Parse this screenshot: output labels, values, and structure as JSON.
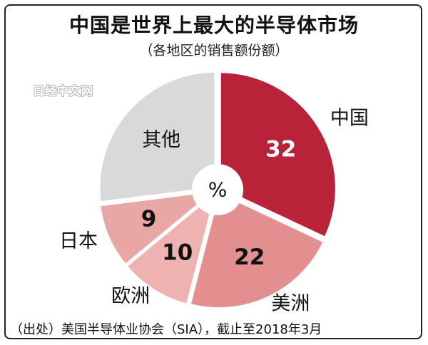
{
  "chart_data": {
    "type": "pie",
    "title": "中国是世界上最大的半导体市场",
    "subtitle": "（各地区的销售额份额）",
    "center_label": "%",
    "unit": "%",
    "slices": [
      {
        "name": "中国",
        "value": 32,
        "value_label": "32",
        "color": "#b8233a",
        "label_color": "#ffffff"
      },
      {
        "name": "美洲",
        "value": 22,
        "value_label": "22",
        "color": "#e38f90",
        "label_color": "#111111"
      },
      {
        "name": "欧洲",
        "value": 10,
        "value_label": "10",
        "color": "#eeb3b1",
        "label_color": "#111111"
      },
      {
        "name": "日本",
        "value": 9,
        "value_label": "9",
        "color": "#e8a6a4",
        "label_color": "#111111"
      },
      {
        "name": "其他",
        "value": 27,
        "value_label": "其他",
        "color": "#d9d9d9",
        "label_color": "#111111"
      }
    ],
    "source": "（出处）美国半导体业协会（SIA），截止至2018年3月"
  },
  "watermark": "日经中文网"
}
